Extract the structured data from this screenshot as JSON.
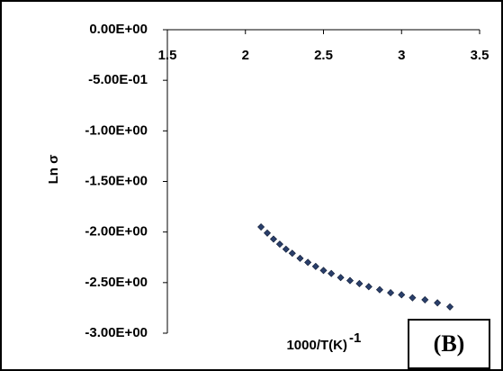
{
  "chart_data": {
    "type": "scatter",
    "title": "",
    "xlabel": "1000/T(K)",
    "xlabel_sup": "-1",
    "ylabel": "Ln σ",
    "xlim": [
      1.5,
      3.5
    ],
    "ylim": [
      -3.0,
      0.0
    ],
    "x_ticks": [
      "1.5",
      "2",
      "2.5",
      "3",
      "3.5"
    ],
    "y_ticks": [
      "0.00E+00",
      "-5.00E-01",
      "-1.00E+00",
      "-1.50E+00",
      "-2.00E+00",
      "-2.50E+00",
      "-3.00E+00"
    ],
    "x_tick_values": [
      1.5,
      2,
      2.5,
      3,
      3.5
    ],
    "y_tick_values": [
      0,
      -0.5,
      -1.0,
      -1.5,
      -2.0,
      -2.5,
      -3.0
    ],
    "x_axis_position": "top",
    "grid": false,
    "legend": "none",
    "marker_color": "#2a3f6b",
    "series": [
      {
        "x": [
          2.1,
          2.14,
          2.18,
          2.22,
          2.26,
          2.3,
          2.35,
          2.4,
          2.45,
          2.5,
          2.55,
          2.61,
          2.67,
          2.73,
          2.79,
          2.86,
          2.93,
          3.0,
          3.07,
          3.15,
          3.23,
          3.31
        ],
        "y": [
          -1.95,
          -2.01,
          -2.07,
          -2.12,
          -2.17,
          -2.21,
          -2.26,
          -2.3,
          -2.34,
          -2.38,
          -2.41,
          -2.45,
          -2.48,
          -2.51,
          -2.54,
          -2.57,
          -2.6,
          -2.62,
          -2.65,
          -2.67,
          -2.7,
          -2.74
        ]
      }
    ]
  },
  "panel_label": "(B)"
}
